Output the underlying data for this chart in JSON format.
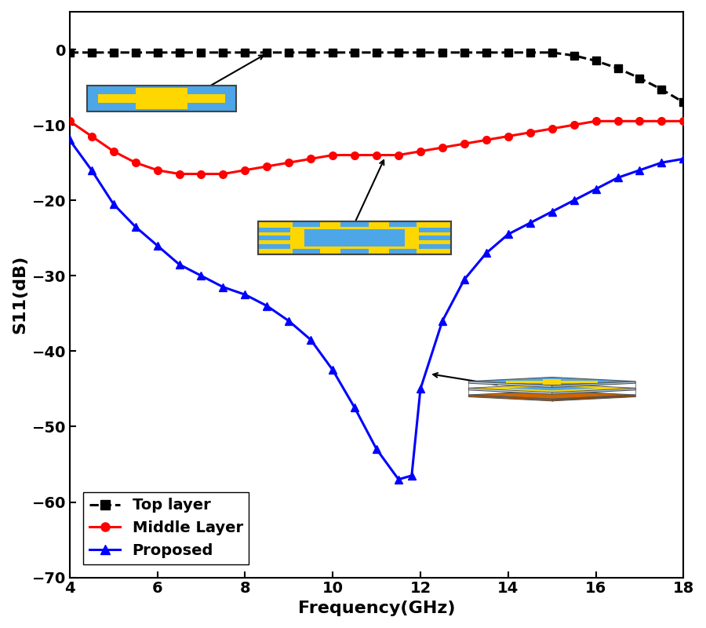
{
  "title": "",
  "xlabel": "Frequency(GHz)",
  "ylabel": "S11(dB)",
  "xlim": [
    4,
    18
  ],
  "ylim": [
    -70,
    5
  ],
  "yticks": [
    0,
    -10,
    -20,
    -30,
    -40,
    -50,
    -60,
    -70
  ],
  "xticks": [
    4,
    6,
    8,
    10,
    12,
    14,
    16,
    18
  ],
  "top_layer_x": [
    4,
    4.5,
    5,
    5.5,
    6,
    6.5,
    7,
    7.5,
    8,
    8.5,
    9,
    9.5,
    10,
    10.5,
    11,
    11.5,
    12,
    12.5,
    13,
    13.5,
    14,
    14.5,
    15,
    15.5,
    16,
    16.5,
    17,
    17.5,
    18
  ],
  "top_layer_y": [
    -0.4,
    -0.4,
    -0.4,
    -0.4,
    -0.4,
    -0.4,
    -0.4,
    -0.4,
    -0.4,
    -0.4,
    -0.4,
    -0.4,
    -0.4,
    -0.4,
    -0.4,
    -0.4,
    -0.4,
    -0.4,
    -0.4,
    -0.4,
    -0.4,
    -0.4,
    -0.4,
    -0.8,
    -1.5,
    -2.5,
    -3.8,
    -5.3,
    -7.0
  ],
  "middle_layer_x": [
    4,
    4.5,
    5,
    5.5,
    6,
    6.5,
    7,
    7.5,
    8,
    8.5,
    9,
    9.5,
    10,
    10.5,
    11,
    11.5,
    12,
    12.5,
    13,
    13.5,
    14,
    14.5,
    15,
    15.5,
    16,
    16.5,
    17,
    17.5,
    18
  ],
  "middle_layer_y": [
    -9.5,
    -11.5,
    -13.5,
    -15.0,
    -16.0,
    -16.5,
    -16.5,
    -16.5,
    -16.0,
    -15.5,
    -15.0,
    -14.5,
    -14.0,
    -14.0,
    -14.0,
    -14.0,
    -13.5,
    -13.0,
    -12.5,
    -12.0,
    -11.5,
    -11.0,
    -10.5,
    -10.0,
    -9.5,
    -9.5,
    -9.5,
    -9.5,
    -9.5
  ],
  "proposed_x": [
    4,
    4.5,
    5,
    5.5,
    6,
    6.5,
    7,
    7.5,
    8,
    8.5,
    9,
    9.5,
    10,
    10.5,
    11,
    11.5,
    11.8,
    12,
    12.5,
    13,
    13.5,
    14,
    14.5,
    15,
    15.5,
    16,
    16.5,
    17,
    17.5,
    18
  ],
  "proposed_y": [
    -12.0,
    -16.0,
    -20.5,
    -23.5,
    -26.0,
    -28.5,
    -30.0,
    -31.5,
    -32.5,
    -34.0,
    -36.0,
    -38.5,
    -42.5,
    -47.5,
    -53.0,
    -57.0,
    -56.5,
    -45.0,
    -36.0,
    -30.5,
    -27.0,
    -24.5,
    -23.0,
    -21.5,
    -20.0,
    -18.5,
    -17.0,
    -16.0,
    -15.0,
    -14.5
  ],
  "top_color": "#000000",
  "middle_color": "#ff0000",
  "proposed_color": "#0000ff",
  "background_color": "#ffffff",
  "legend_labels": [
    "Top layer",
    "Middle Layer",
    "Proposed"
  ],
  "blue_patch": "#4da6e8",
  "yellow_patch": "#FFD700",
  "orange_patch": "#CC6600",
  "figsize": [
    9.0,
    8.0
  ],
  "dpi": 100
}
